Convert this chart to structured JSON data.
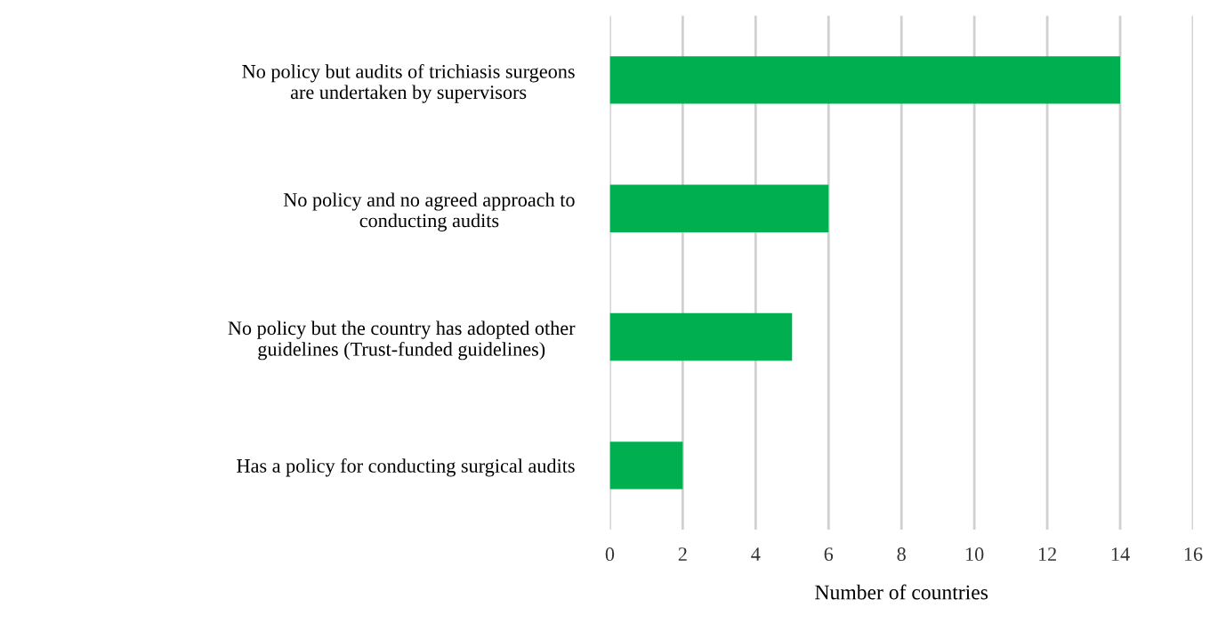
{
  "chart_data": {
    "type": "bar",
    "orientation": "horizontal",
    "categories": [
      "No policy but audits of trichiasis surgeons\nare undertaken by supervisors",
      "No policy and no agreed approach to\nconducting audits",
      "No policy but the country has adopted other\nguidelines (Trust-funded guidelines)",
      "Has a policy for conducting surgical audits"
    ],
    "values": [
      14,
      6,
      5,
      2
    ],
    "color": "#00b050",
    "xlim": [
      0,
      16
    ],
    "xticks": [
      0,
      2,
      4,
      6,
      8,
      10,
      12,
      14,
      16
    ],
    "xlabel": "Number of countries",
    "grid": "x"
  }
}
